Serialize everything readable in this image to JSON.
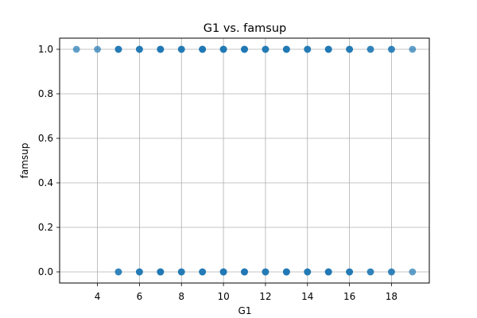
{
  "chart_data": {
    "type": "scatter",
    "title": "G1 vs. famsup",
    "xlabel": "G1",
    "ylabel": "famsup",
    "xlim": [
      2.2,
      19.8
    ],
    "ylim": [
      -0.05,
      1.05
    ],
    "xticks": [
      4,
      6,
      8,
      10,
      12,
      14,
      16,
      18
    ],
    "xtick_labels": [
      "4",
      "6",
      "8",
      "10",
      "12",
      "14",
      "16",
      "18"
    ],
    "yticks": [
      0.0,
      0.2,
      0.4,
      0.6,
      0.8,
      1.0
    ],
    "ytick_labels": [
      "0.0",
      "0.2",
      "0.4",
      "0.6",
      "0.8",
      "1.0"
    ],
    "grid": true,
    "point_color": "#1f77b4",
    "points": [
      {
        "x": 3,
        "y": 1
      },
      {
        "x": 4,
        "y": 1
      },
      {
        "x": 5,
        "y": 1
      },
      {
        "x": 5,
        "y": 1
      },
      {
        "x": 5,
        "y": 1
      },
      {
        "x": 6,
        "y": 1
      },
      {
        "x": 6,
        "y": 1
      },
      {
        "x": 6,
        "y": 1
      },
      {
        "x": 7,
        "y": 1
      },
      {
        "x": 7,
        "y": 1
      },
      {
        "x": 7,
        "y": 1
      },
      {
        "x": 7,
        "y": 1
      },
      {
        "x": 8,
        "y": 1
      },
      {
        "x": 8,
        "y": 1
      },
      {
        "x": 8,
        "y": 1
      },
      {
        "x": 9,
        "y": 1
      },
      {
        "x": 9,
        "y": 1
      },
      {
        "x": 9,
        "y": 1
      },
      {
        "x": 9,
        "y": 1
      },
      {
        "x": 10,
        "y": 1
      },
      {
        "x": 10,
        "y": 1
      },
      {
        "x": 10,
        "y": 1
      },
      {
        "x": 10,
        "y": 1
      },
      {
        "x": 11,
        "y": 1
      },
      {
        "x": 11,
        "y": 1
      },
      {
        "x": 11,
        "y": 1
      },
      {
        "x": 11,
        "y": 1
      },
      {
        "x": 12,
        "y": 1
      },
      {
        "x": 12,
        "y": 1
      },
      {
        "x": 12,
        "y": 1
      },
      {
        "x": 13,
        "y": 1
      },
      {
        "x": 13,
        "y": 1
      },
      {
        "x": 13,
        "y": 1
      },
      {
        "x": 13,
        "y": 1
      },
      {
        "x": 14,
        "y": 1
      },
      {
        "x": 14,
        "y": 1
      },
      {
        "x": 14,
        "y": 1
      },
      {
        "x": 15,
        "y": 1
      },
      {
        "x": 15,
        "y": 1
      },
      {
        "x": 15,
        "y": 1
      },
      {
        "x": 15,
        "y": 1
      },
      {
        "x": 16,
        "y": 1
      },
      {
        "x": 16,
        "y": 1
      },
      {
        "x": 16,
        "y": 1
      },
      {
        "x": 17,
        "y": 1
      },
      {
        "x": 17,
        "y": 1
      },
      {
        "x": 18,
        "y": 1
      },
      {
        "x": 18,
        "y": 1
      },
      {
        "x": 19,
        "y": 1
      },
      {
        "x": 5,
        "y": 0
      },
      {
        "x": 5,
        "y": 0
      },
      {
        "x": 6,
        "y": 0
      },
      {
        "x": 6,
        "y": 0
      },
      {
        "x": 6,
        "y": 0
      },
      {
        "x": 7,
        "y": 0
      },
      {
        "x": 7,
        "y": 0
      },
      {
        "x": 7,
        "y": 0
      },
      {
        "x": 7,
        "y": 0
      },
      {
        "x": 8,
        "y": 0
      },
      {
        "x": 8,
        "y": 0
      },
      {
        "x": 8,
        "y": 0
      },
      {
        "x": 9,
        "y": 0
      },
      {
        "x": 9,
        "y": 0
      },
      {
        "x": 9,
        "y": 0
      },
      {
        "x": 10,
        "y": 0
      },
      {
        "x": 10,
        "y": 0
      },
      {
        "x": 10,
        "y": 0
      },
      {
        "x": 10,
        "y": 0
      },
      {
        "x": 11,
        "y": 0
      },
      {
        "x": 11,
        "y": 0
      },
      {
        "x": 11,
        "y": 0
      },
      {
        "x": 11,
        "y": 0
      },
      {
        "x": 12,
        "y": 0
      },
      {
        "x": 12,
        "y": 0
      },
      {
        "x": 12,
        "y": 0
      },
      {
        "x": 13,
        "y": 0
      },
      {
        "x": 13,
        "y": 0
      },
      {
        "x": 13,
        "y": 0
      },
      {
        "x": 13,
        "y": 0
      },
      {
        "x": 14,
        "y": 0
      },
      {
        "x": 14,
        "y": 0
      },
      {
        "x": 14,
        "y": 0
      },
      {
        "x": 15,
        "y": 0
      },
      {
        "x": 15,
        "y": 0
      },
      {
        "x": 15,
        "y": 0
      },
      {
        "x": 15,
        "y": 0
      },
      {
        "x": 16,
        "y": 0
      },
      {
        "x": 16,
        "y": 0
      },
      {
        "x": 16,
        "y": 0
      },
      {
        "x": 17,
        "y": 0
      },
      {
        "x": 17,
        "y": 0
      },
      {
        "x": 18,
        "y": 0
      },
      {
        "x": 18,
        "y": 0
      },
      {
        "x": 19,
        "y": 0
      }
    ]
  }
}
